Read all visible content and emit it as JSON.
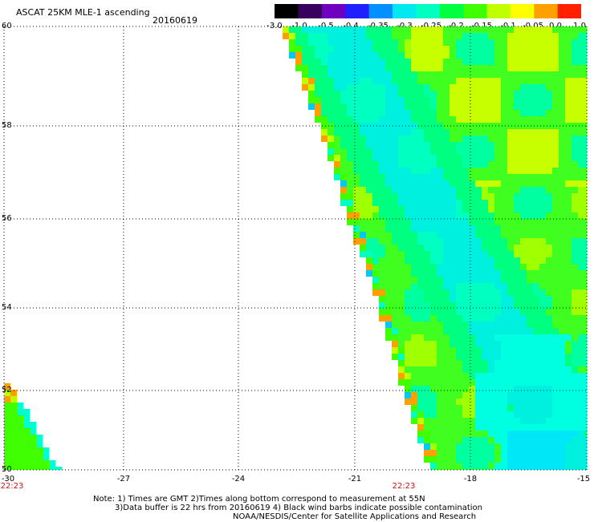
{
  "header": {
    "title": "ASCAT 25KM MLE-1 ascending",
    "date": "20160619"
  },
  "colorbar": {
    "tick_labels": [
      "-3.0",
      "-1.0",
      "-0.5",
      "-0.4",
      "-0.35",
      "-0.3",
      "-0.25",
      "-0.2",
      "-0.15",
      "-0.1",
      "-0.05",
      "0.0",
      "1.0"
    ],
    "colors": [
      "#000000",
      "#3a0060",
      "#7000c0",
      "#2020ff",
      "#0090ff",
      "#00e8f0",
      "#00ffc0",
      "#00ff40",
      "#40ff00",
      "#c0ff00",
      "#ffff00",
      "#ffa000",
      "#ff2000"
    ]
  },
  "map": {
    "lat_labels": [
      "60",
      "58",
      "56",
      "54",
      "52",
      "50"
    ],
    "lon_labels": [
      "-30",
      "-27",
      "-24",
      "-21",
      "-18",
      "-15"
    ],
    "time_labels": [
      "22:23",
      "22:23"
    ],
    "lat_range": [
      50,
      60
    ],
    "lon_range": [
      -30,
      -15
    ],
    "gridlines": true,
    "time_color": "#d01010"
  },
  "notes": {
    "line1": "Note: 1) Times are GMT 2)Times along bottom correspond to measurement at 55N",
    "line2": "3)Data buffer is 22 hrs from 20160619 4) Black wind barbs indicate possible contamination",
    "line3": "NOAA/NESDIS/Center for Satellite Applications and Research"
  }
}
